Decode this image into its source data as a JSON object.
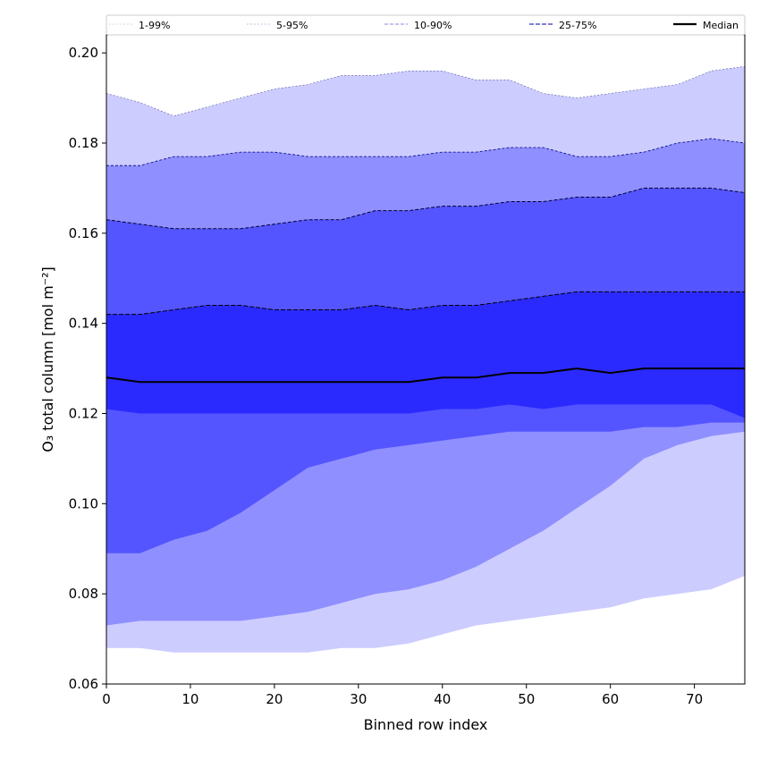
{
  "chart_data": {
    "type": "area",
    "xlabel": "Binned row index",
    "ylabel": "O₃ total column [mol m⁻²]",
    "xlim": [
      0,
      76
    ],
    "ylim": [
      0.06,
      0.204
    ],
    "xticks": [
      0,
      10,
      20,
      30,
      40,
      50,
      60,
      70
    ],
    "yticks": [
      0.06,
      0.08,
      0.1,
      0.12,
      0.14,
      0.16,
      0.18,
      0.2
    ],
    "legend_position": "top",
    "legend": [
      "1-99%",
      "5-95%",
      "10-90%",
      "25-75%",
      "Median"
    ],
    "colors": {
      "band_1_99": "#ccccff",
      "band_5_95": "#8f8fff",
      "band_10_90": "#5555ff",
      "band_25_75": "#2a2aff",
      "line_1_99": "#c8c8e0",
      "line_5_95": "#b0b0dd",
      "line_10_90": "#8888dd",
      "line_25_75": "#5555cc",
      "edge_dark": "#000000",
      "median": "#000000"
    },
    "x": [
      0,
      4,
      8,
      12,
      16,
      20,
      24,
      28,
      32,
      36,
      40,
      44,
      48,
      52,
      56,
      60,
      64,
      68,
      72,
      76
    ],
    "series": [
      {
        "name": "p1",
        "values": [
          0.068,
          0.068,
          0.067,
          0.067,
          0.067,
          0.067,
          0.067,
          0.068,
          0.068,
          0.069,
          0.071,
          0.073,
          0.074,
          0.075,
          0.076,
          0.077,
          0.079,
          0.08,
          0.081,
          0.084
        ]
      },
      {
        "name": "p5",
        "values": [
          0.073,
          0.074,
          0.074,
          0.074,
          0.074,
          0.075,
          0.076,
          0.078,
          0.08,
          0.081,
          0.083,
          0.086,
          0.09,
          0.094,
          0.099,
          0.104,
          0.11,
          0.113,
          0.115,
          0.116
        ]
      },
      {
        "name": "p10",
        "values": [
          0.089,
          0.089,
          0.092,
          0.094,
          0.098,
          0.103,
          0.108,
          0.11,
          0.112,
          0.113,
          0.114,
          0.115,
          0.116,
          0.116,
          0.116,
          0.116,
          0.117,
          0.117,
          0.118,
          0.118
        ]
      },
      {
        "name": "p25",
        "values": [
          0.121,
          0.12,
          0.12,
          0.12,
          0.12,
          0.12,
          0.12,
          0.12,
          0.12,
          0.12,
          0.121,
          0.121,
          0.122,
          0.121,
          0.122,
          0.122,
          0.122,
          0.122,
          0.122,
          0.119
        ]
      },
      {
        "name": "median",
        "values": [
          0.128,
          0.127,
          0.127,
          0.127,
          0.127,
          0.127,
          0.127,
          0.127,
          0.127,
          0.127,
          0.128,
          0.128,
          0.129,
          0.129,
          0.13,
          0.129,
          0.13,
          0.13,
          0.13,
          0.13
        ]
      },
      {
        "name": "p75",
        "values": [
          0.142,
          0.142,
          0.143,
          0.144,
          0.144,
          0.143,
          0.143,
          0.143,
          0.144,
          0.143,
          0.144,
          0.144,
          0.145,
          0.146,
          0.147,
          0.147,
          0.147,
          0.147,
          0.147,
          0.147
        ]
      },
      {
        "name": "p90",
        "values": [
          0.163,
          0.162,
          0.161,
          0.161,
          0.161,
          0.162,
          0.163,
          0.163,
          0.165,
          0.165,
          0.166,
          0.166,
          0.167,
          0.167,
          0.168,
          0.168,
          0.17,
          0.17,
          0.17,
          0.169
        ]
      },
      {
        "name": "p95",
        "values": [
          0.175,
          0.175,
          0.177,
          0.177,
          0.178,
          0.178,
          0.177,
          0.177,
          0.177,
          0.177,
          0.178,
          0.178,
          0.179,
          0.179,
          0.177,
          0.177,
          0.178,
          0.18,
          0.181,
          0.18
        ]
      },
      {
        "name": "p99",
        "values": [
          0.191,
          0.189,
          0.186,
          0.188,
          0.19,
          0.192,
          0.193,
          0.195,
          0.195,
          0.196,
          0.196,
          0.194,
          0.194,
          0.191,
          0.19,
          0.191,
          0.192,
          0.193,
          0.196,
          0.197
        ]
      }
    ]
  }
}
